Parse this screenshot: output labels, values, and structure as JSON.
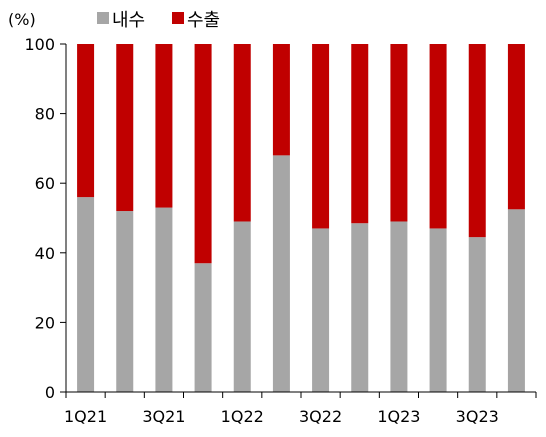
{
  "chart_data": {
    "type": "bar",
    "stacked": true,
    "unit_label": "(%)",
    "categories": [
      "1Q21",
      "2Q21",
      "3Q21",
      "4Q21",
      "1Q22",
      "2Q22",
      "3Q22",
      "4Q22",
      "1Q23",
      "2Q23",
      "3Q23",
      "4Q23"
    ],
    "category_labels_shown": [
      "1Q21",
      "",
      "3Q21",
      "",
      "1Q22",
      "",
      "3Q22",
      "",
      "1Q23",
      "",
      "3Q23",
      ""
    ],
    "series": [
      {
        "name": "내수",
        "color": "#a6a6a6",
        "values": [
          56,
          52,
          53,
          37,
          49,
          68,
          47,
          48.5,
          49,
          47,
          44.5,
          52.5
        ]
      },
      {
        "name": "수출",
        "color": "#c00000",
        "values": [
          44,
          48,
          47,
          63,
          51,
          32,
          53,
          51.5,
          51,
          53,
          55.5,
          47.5
        ]
      }
    ],
    "yticks": [
      "0",
      "20",
      "40",
      "60",
      "80",
      "100"
    ],
    "ylim": [
      0,
      100
    ],
    "legend_position": "top-left",
    "grid": false
  }
}
